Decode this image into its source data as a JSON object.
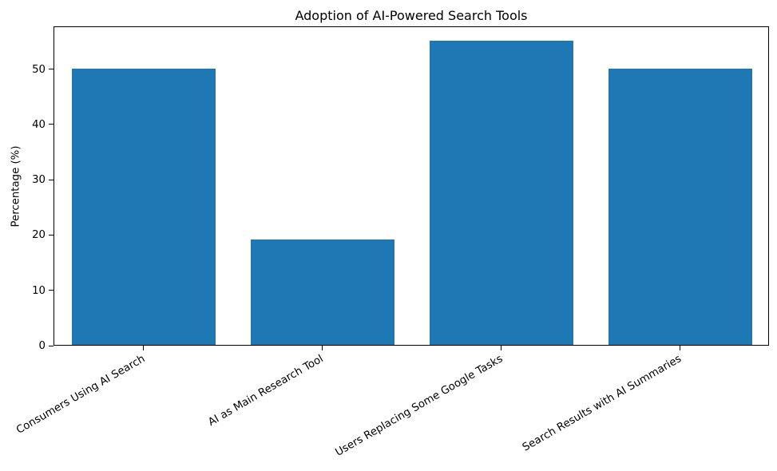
{
  "chart_data": {
    "type": "bar",
    "title": "Adoption of AI-Powered Search Tools",
    "xlabel": "",
    "ylabel": "Percentage (%)",
    "categories": [
      "Consumers Using AI Search",
      "AI as Main Research Tool",
      "Users Replacing Some Google Tasks",
      "Search Results with AI Summaries"
    ],
    "values": [
      50,
      19,
      55,
      50
    ],
    "ylim": [
      0,
      57.75
    ],
    "yticks": [
      0,
      10,
      20,
      30,
      40,
      50
    ],
    "bar_width_fraction": 0.8,
    "bar_color": "#1f77b4",
    "frame_color": "#000000",
    "text_color": "#000000",
    "grid": false,
    "legend_position": "none"
  }
}
